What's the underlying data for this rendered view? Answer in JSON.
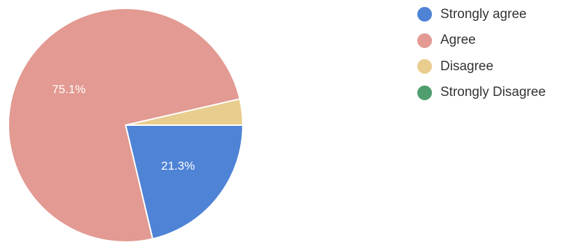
{
  "chart_data": {
    "type": "pie",
    "title": "",
    "legend_position": "top-right",
    "slices": [
      {
        "label": "Strongly agree",
        "value": 21.3,
        "value_label": "21.3%",
        "color": "#4f83d6"
      },
      {
        "label": "Agree",
        "value": 75.1,
        "value_label": "75.1%",
        "color": "#e29a92"
      },
      {
        "label": "Disagree",
        "value": 3.6,
        "value_label": "",
        "color": "#e9cd8e"
      },
      {
        "label": "Strongly Disagree",
        "value": 0,
        "value_label": "",
        "color": "#4f9e6e"
      }
    ]
  }
}
